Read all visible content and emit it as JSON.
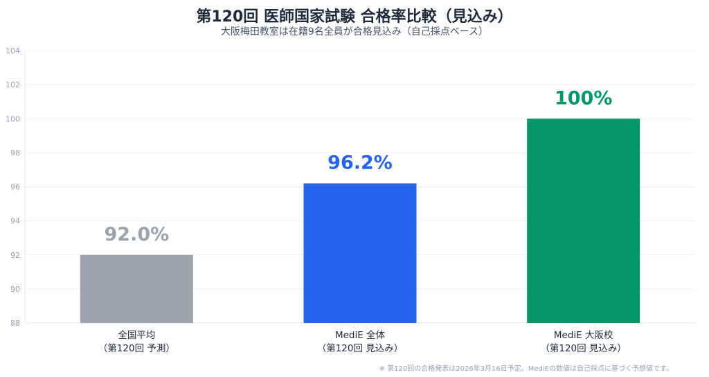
{
  "chart_data": {
    "type": "bar",
    "title": "第120回 医師国家試験 合格率比較（見込み）",
    "subtitle": "大阪梅田教室は在籍9名全員が合格見込み（自己採点ベース）",
    "categories": [
      {
        "line1": "全国平均",
        "line2": "（第120回 予測）"
      },
      {
        "line1": "MediE 全体",
        "line2": "（第120回 見込み）"
      },
      {
        "line1": "MediE 大阪校",
        "line2": "（第120回 見込み）"
      }
    ],
    "values": [
      92.0,
      96.2,
      100
    ],
    "value_labels": [
      "92.0%",
      "96.2%",
      "100%"
    ],
    "colors": [
      "#9ca3af",
      "#2563eb",
      "#059669"
    ],
    "ylim": [
      88,
      104
    ],
    "yticks": [
      "88",
      "90",
      "92",
      "94",
      "96",
      "98",
      "100",
      "102",
      "104"
    ],
    "grid": true,
    "footnote": "※ 第120回の合格発表は2026年3月16日予定。MediEの数値は自己採点に基づく予想値です。"
  }
}
